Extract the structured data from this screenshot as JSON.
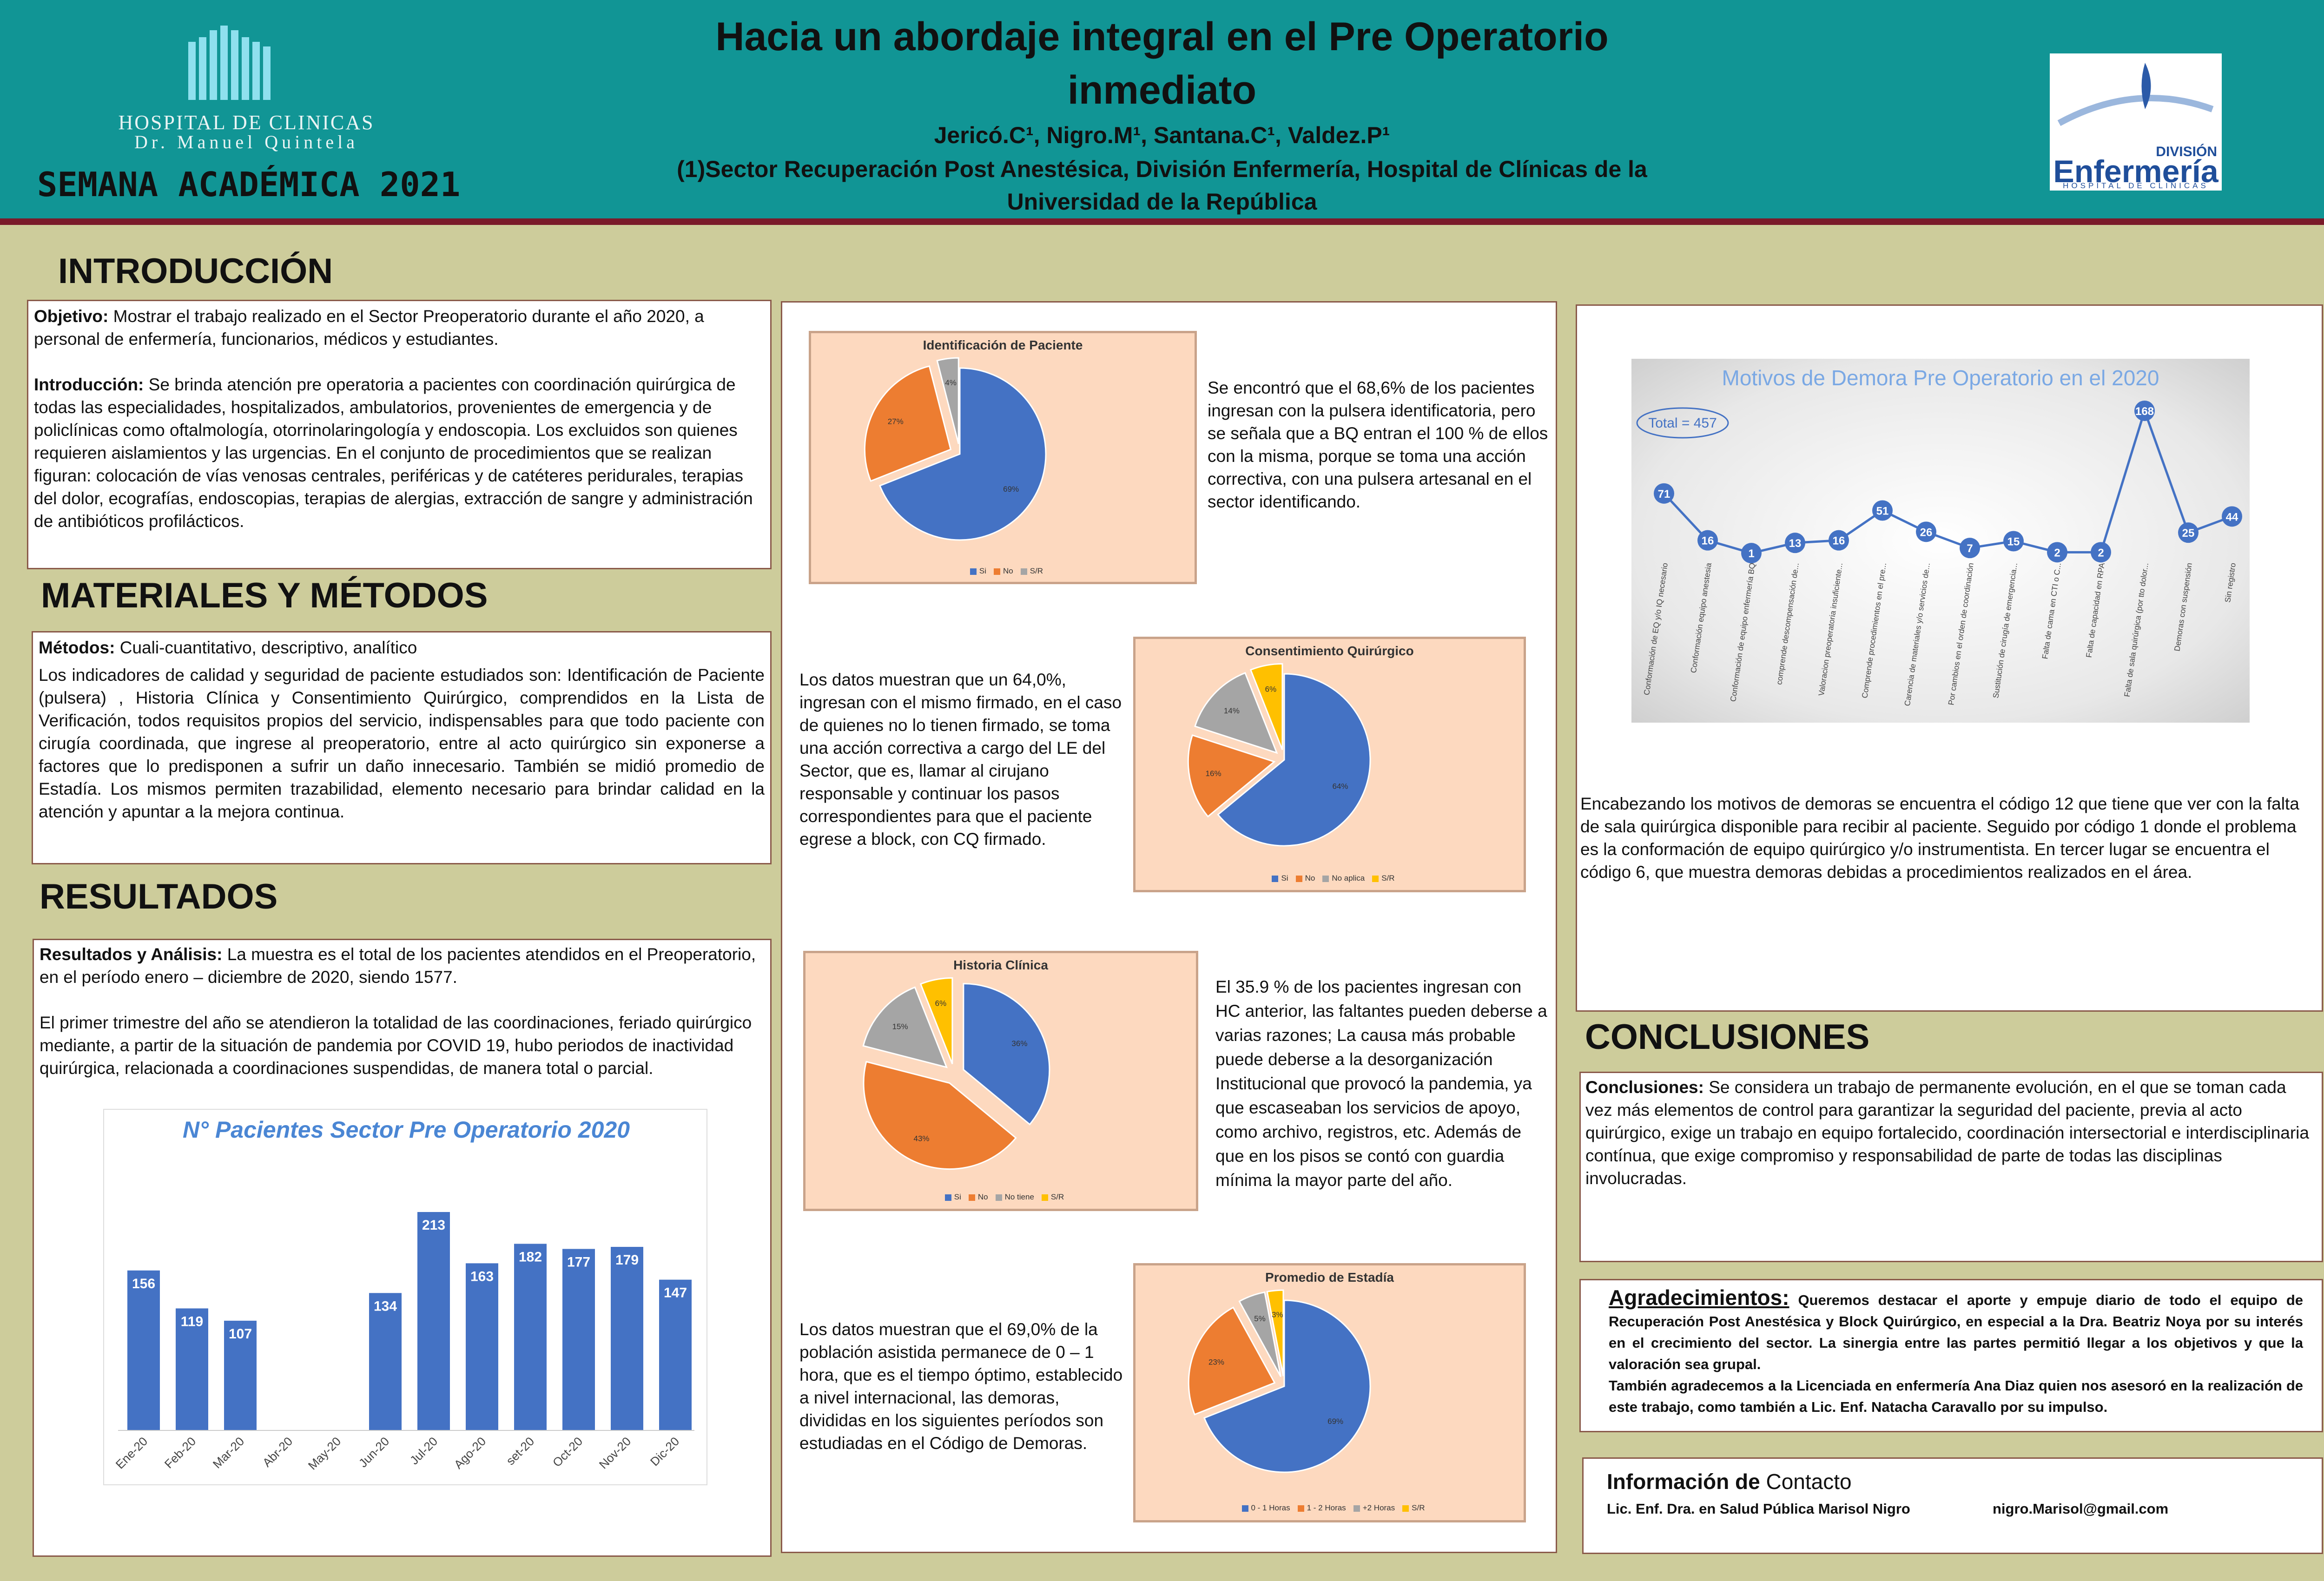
{
  "header": {
    "hospital_line1": "HOSPITAL DE CLINICAS",
    "hospital_line2": "Dr. Manuel Quintela",
    "event": "SEMANA ACADÉMICA 2021",
    "title_line1": "Hacia un abordaje integral en el Pre Operatorio",
    "title_line2": "inmediato",
    "authors": "Jericó.C¹, Nigro.M¹, Santana.C¹, Valdez.P¹",
    "affiliation_line1": "(1)Sector Recuperación Post Anestésica, División Enfermería, Hospital de Clínicas de la",
    "affiliation_line2": "Universidad de la República",
    "logo_right_top": "DIVISIÓN",
    "logo_right_main": "Enfermería",
    "logo_right_sub": "HOSPITAL DE CLINICAS"
  },
  "intro": {
    "heading": "INTRODUCCIÓN",
    "objetivo_label": "Objetivo:",
    "objetivo_text": " Mostrar el trabajo realizado en el Sector Preoperatorio durante el año 2020, a personal de enfermería, funcionarios, médicos y estudiantes.",
    "intro_label": "Introducción:",
    "intro_text": " Se brinda atención pre operatoria a pacientes con coordinación quirúrgica de todas las especialidades, hospitalizados, ambulatorios, provenientes de emergencia y de policlínicas como oftalmología, otorrinolaringología y endoscopia. Los excluidos son quienes requieren aislamientos y las urgencias. En el conjunto de procedimientos que se realizan figuran: colocación de vías venosas centrales, periféricas y de catéteres peridurales, terapias del dolor, ecografías, endoscopias, terapias de alergias, extracción de sangre y administración de antibióticos profilácticos."
  },
  "methods": {
    "heading": "MATERIALES Y MÉTODOS",
    "label": "Métodos:",
    "label_text": " Cuali-cuantitativo, descriptivo, analítico",
    "text": "Los indicadores de calidad y seguridad de paciente estudiados son: Identificación de Paciente (pulsera) , Historia Clínica y Consentimiento Quirúrgico, comprendidos en la Lista de Verificación, todos requisitos propios del servicio, indispensables para que todo paciente con cirugía coordinada, que ingrese al preoperatorio, entre al acto quirúrgico sin exponerse a factores que lo predisponen a sufrir un daño innecesario. También se midió promedio de Estadía. Los mismos permiten trazabilidad, elemento necesario para brindar calidad en la atención y apuntar a la mejora continua."
  },
  "results": {
    "heading": "RESULTADOS",
    "label": "Resultados y Análisis:",
    "text1": " La muestra es el total de los pacientes atendidos en el Preoperatorio, en el período enero – diciembre de 2020, siendo 1577.",
    "text2": "El primer trimestre del año se atendieron la totalidad de las coordinaciones, feriado quirúrgico mediante, a partir de la situación de pandemia por COVID 19, hubo periodos de inactividad quirúrgica, relacionada a coordinaciones suspendidas, de manera total o parcial."
  },
  "middle_texts": {
    "identificacion": "Se encontró que el 68,6% de los pacientes ingresan con la pulsera identificatoria, pero se señala que a BQ entran el 100 % de ellos con la misma, porque se toma una acción correctiva, con una pulsera artesanal en el sector identificando.",
    "consentimiento": "Los datos muestran que un 64,0%, ingresan con el mismo firmado, en el caso de quienes no lo tienen firmado, se toma una acción correctiva a cargo del LE del Sector, que es, llamar al cirujano responsable y continuar los pasos correspondientes para que el paciente egrese a block, con CQ  firmado.",
    "historia": "El 35.9 % de los pacientes ingresan con HC anterior, las faltantes pueden deberse a varias razones; La causa más probable puede deberse a la desorganización Institucional que provocó la pandemia, ya que escaseaban los servicios de apoyo, como archivo, registros, etc. Además de que en los pisos se contó con guardia mínima la mayor parte del año.",
    "estadia": "Los datos muestran que el 69,0% de la población asistida permanece de 0 – 1 hora, que es el tiempo óptimo, establecido a nivel internacional, las demoras, divididas en los siguientes períodos son estudiadas en el Código de  Demoras."
  },
  "demoras_text": "Encabezando los motivos de demoras se encuentra el código 12 que tiene que ver con la falta de sala quirúrgica disponible para recibir al paciente. Seguido por código 1 donde el problema es la conformación de equipo quirúrgico y/o instrumentista. En tercer lugar se encuentra el código 6, que muestra demoras debidas a procedimientos realizados en el área.",
  "conclusions": {
    "heading": "CONCLUSIONES",
    "label": "Conclusiones:",
    "text": " Se considera un trabajo de permanente evolución, en el que se toman cada vez más elementos de control para garantizar la seguridad del paciente, previa al acto quirúrgico, exige un trabajo en equipo fortalecido, coordinación intersectorial e interdisciplinaria contínua, que exige compromiso y responsabilidad de parte de todas las disciplinas involucradas."
  },
  "thanks": {
    "label": "Agradecimientos:",
    "text1": " Queremos destacar el aporte y empuje diario de todo el equipo de Recuperación Post Anestésica y Block Quirúrgico, en especial a la Dra. Beatriz Noya por su interés en el crecimiento del sector. La sinergia entre las partes permitió llegar a los objetivos y que la valoración sea grupal.",
    "text2": "También agradecemos a la Licenciada en enfermería Ana Diaz quien nos asesoró en la realización de este trabajo, como también a Lic. Enf. Natacha Caravallo por su impulso."
  },
  "contact": {
    "label": "Información de",
    "label2": " Contacto",
    "name": "Lic. Enf. Dra. en Salud Pública Marisol Nigro",
    "email": "nigro.Marisol@gmail.com"
  },
  "colors": {
    "header": "#119595",
    "blue": "#4472c4",
    "orange": "#ed7d31",
    "gray": "#a5a5a5",
    "yellow": "#ffc000"
  },
  "chart_data": [
    {
      "type": "bar",
      "title": "N° Pacientes Sector Pre Operatorio 2020",
      "categories": [
        "Ene-20",
        "Feb-20",
        "Mar-20",
        "Abr-20",
        "May-20",
        "Jun-20",
        "Jul-20",
        "Ago-20",
        "set-20",
        "Oct-20",
        "Nov-20",
        "Dic-20"
      ],
      "values": [
        156,
        119,
        107,
        0,
        0,
        134,
        213,
        163,
        182,
        177,
        179,
        147
      ],
      "labels": [
        "156",
        "119",
        "107",
        "",
        "",
        "134",
        "213",
        "163",
        "182",
        "177",
        "179",
        "147"
      ]
    },
    {
      "type": "pie",
      "title": "Identificación de Paciente",
      "categories": [
        "Si",
        "No",
        "S/R"
      ],
      "values": [
        69,
        27,
        4
      ],
      "labels": [
        "69%",
        "27%",
        "4%"
      ]
    },
    {
      "type": "pie",
      "title": "Consentimiento Quirúrgico",
      "categories": [
        "Si",
        "No",
        "No aplica",
        "S/R"
      ],
      "values": [
        64,
        16,
        14,
        6
      ],
      "labels": [
        "64%",
        "16%",
        "14%",
        "6%"
      ]
    },
    {
      "type": "pie",
      "title": "Historia Clínica",
      "categories": [
        "Si",
        "No",
        "No tiene",
        "S/R"
      ],
      "values": [
        36,
        43,
        15,
        6
      ],
      "labels": [
        "36%",
        "43%",
        "15%",
        "6%"
      ]
    },
    {
      "type": "pie",
      "title": "Promedio de Estadía",
      "categories": [
        "0 - 1 Horas",
        "1 - 2 Horas",
        "+2 Horas",
        "S/R"
      ],
      "values": [
        69,
        23,
        5,
        3
      ],
      "labels": [
        "69%",
        "23%",
        "5%",
        "3%"
      ]
    },
    {
      "type": "line",
      "title": "Motivos de Demora Pre Operatorio en el 2020",
      "annotation": "Total = 457",
      "categories": [
        "Conformación de EQ y/o IQ necesario",
        "Conformación equipo anestesia",
        "Conformación de equipo enfermería BQ",
        "comprende descompensación de...",
        "Valoracion preoperatoria insuficiente...",
        "Comprende procedimientos en el pre...",
        "Carencia de materiales y/o servicios de...",
        "Por cambios en el orden de coordinación",
        "Sustitución de cirugía de emergencia...",
        "Falta de cama en CTI o C...",
        "Falta de capacidad en RPA",
        "Falta de sala quirúrgica (por tto dolor...",
        "Demoras con suspensión",
        "Sin registro"
      ],
      "values": [
        71,
        16,
        1,
        13,
        16,
        51,
        26,
        7,
        15,
        2,
        2,
        168,
        25,
        44
      ]
    }
  ]
}
